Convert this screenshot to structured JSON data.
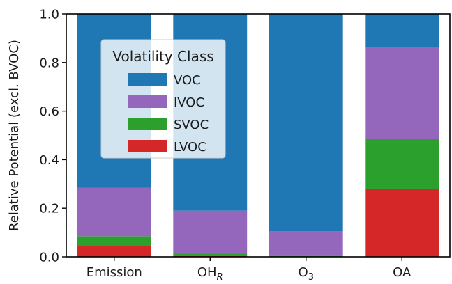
{
  "chart_data": {
    "type": "bar",
    "stacked": true,
    "categories": [
      {
        "base": "Emission",
        "sub": ""
      },
      {
        "base": "OH",
        "sub": "R"
      },
      {
        "base": "O",
        "sub": "3"
      },
      {
        "base": "OA",
        "sub": ""
      }
    ],
    "series": [
      {
        "name": "LVOC",
        "color": "#d62728",
        "values": [
          0.045,
          0.005,
          0.0,
          0.28
        ]
      },
      {
        "name": "SVOC",
        "color": "#2ca02c",
        "values": [
          0.04,
          0.008,
          0.005,
          0.205
        ]
      },
      {
        "name": "IVOC",
        "color": "#9467bd",
        "values": [
          0.2,
          0.177,
          0.1,
          0.38
        ]
      },
      {
        "name": "VOC",
        "color": "#1f77b4",
        "values": [
          0.715,
          0.81,
          0.895,
          0.135
        ]
      }
    ],
    "ylabel": "Relative Potential (excl. BVOC)",
    "xlabel": "",
    "ylim": [
      0,
      1.0
    ],
    "yticks": [
      "0.0",
      "0.2",
      "0.4",
      "0.6",
      "0.8",
      "1.0"
    ],
    "grid": false,
    "legend": {
      "title": "Volatility Class",
      "placement": "upper-left",
      "entries": [
        "VOC",
        "IVOC",
        "SVOC",
        "LVOC"
      ]
    }
  }
}
